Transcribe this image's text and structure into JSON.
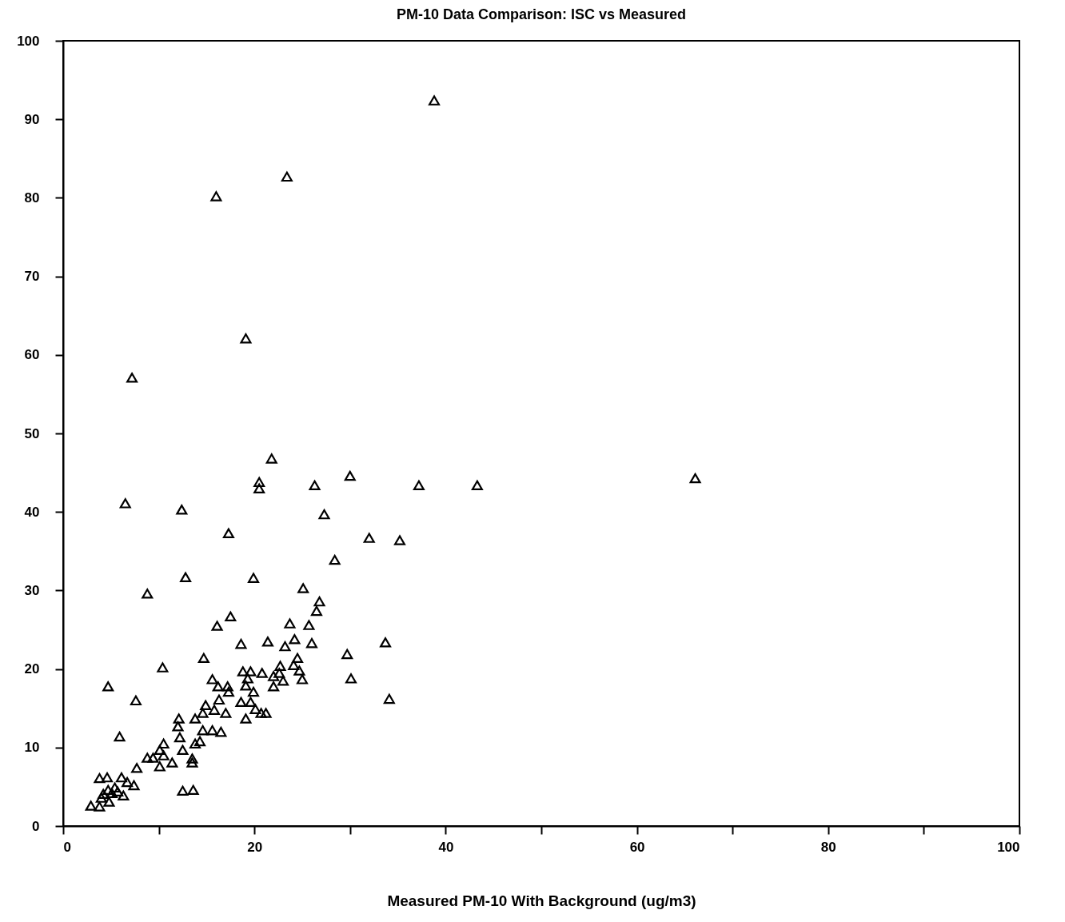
{
  "chart_data": {
    "type": "scatter",
    "title": "PM-10 Data Comparison: ISC vs Measured",
    "xlabel": "Measured PM-10 With Background (ug/m3)",
    "marker": "triangle",
    "grid": false,
    "color": "#000000",
    "xlim": [
      0,
      100
    ],
    "ylim": [
      0,
      100
    ],
    "xticks": [
      0,
      {
        "value": 10,
        "label": null
      },
      20,
      {
        "value": 30,
        "label": null
      },
      40,
      {
        "value": 50,
        "label": null
      },
      60,
      {
        "value": 70,
        "label": null
      },
      80,
      {
        "value": 90,
        "label": null
      },
      100
    ],
    "yticks": [
      0,
      10,
      20,
      30,
      40,
      50,
      60,
      70,
      80,
      90,
      100
    ],
    "x": [
      38.8,
      23.4,
      16.0,
      19.1,
      7.2,
      66.1,
      43.3,
      37.2,
      30.0,
      26.3,
      21.8,
      20.5,
      20.5,
      6.5,
      12.4,
      27.3,
      17.3,
      32.0,
      35.2,
      28.4,
      12.8,
      19.9,
      8.8,
      25.1,
      26.8,
      26.5,
      17.5,
      16.1,
      23.7,
      25.7,
      24.2,
      21.4,
      18.6,
      26.0,
      23.2,
      33.7,
      29.7,
      14.7,
      10.4,
      30.1,
      4.7,
      34.1,
      7.6,
      5.9,
      12.5,
      13.6,
      24.5,
      24.1,
      24.7,
      25.0,
      22.7,
      22.6,
      23.0,
      22.0,
      22.0,
      20.8,
      19.6,
      18.8,
      19.3,
      19.1,
      19.9,
      18.6,
      19.6,
      20.1,
      20.7,
      21.2,
      19.1,
      15.6,
      16.2,
      17.2,
      17.3,
      16.3,
      14.9,
      15.8,
      17.0,
      14.6,
      13.8,
      12.1,
      12.0,
      14.6,
      15.6,
      16.5,
      12.2,
      14.3,
      13.8,
      12.5,
      10.5,
      10.1,
      13.5,
      13.5,
      11.4,
      10.5,
      8.8,
      10.1,
      7.7,
      9.4,
      3.8,
      4.6,
      6.1,
      6.7,
      7.4,
      5.4,
      6.3,
      4.7,
      4.2,
      4.8,
      2.9,
      3.8,
      4.0,
      5.1,
      5.7
    ],
    "values": [
      92.4,
      82.7,
      80.2,
      62.1,
      57.1,
      44.3,
      43.4,
      43.4,
      44.6,
      43.4,
      46.8,
      43.8,
      43.0,
      41.1,
      40.3,
      39.7,
      37.3,
      36.7,
      36.4,
      33.9,
      31.7,
      31.6,
      29.6,
      30.3,
      28.6,
      27.4,
      26.7,
      25.5,
      25.8,
      25.6,
      23.8,
      23.5,
      23.2,
      23.3,
      22.9,
      23.4,
      21.9,
      21.4,
      20.2,
      18.8,
      17.8,
      16.2,
      16.0,
      11.4,
      4.5,
      4.6,
      21.4,
      20.5,
      19.8,
      18.7,
      20.4,
      19.5,
      18.5,
      17.8,
      19.1,
      19.5,
      19.7,
      19.7,
      18.8,
      17.9,
      17.1,
      15.8,
      15.8,
      14.9,
      14.4,
      14.4,
      13.7,
      18.7,
      17.8,
      17.8,
      17.1,
      16.1,
      15.4,
      14.8,
      14.4,
      14.4,
      13.7,
      13.7,
      12.7,
      12.2,
      12.2,
      12.0,
      11.3,
      10.8,
      10.5,
      9.7,
      10.5,
      9.7,
      8.6,
      8.1,
      8.1,
      9.0,
      8.7,
      7.6,
      7.4,
      8.7,
      6.1,
      6.2,
      6.2,
      5.6,
      5.2,
      4.9,
      3.9,
      4.6,
      4.1,
      3.1,
      2.6,
      2.5,
      3.6,
      4.2,
      4.4
    ]
  }
}
